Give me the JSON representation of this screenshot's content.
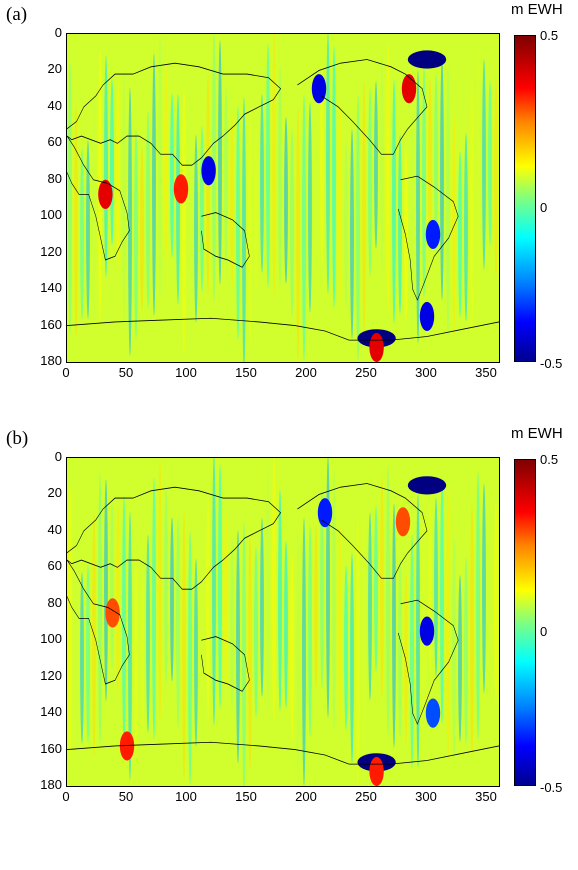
{
  "panels": [
    {
      "label": "(a)",
      "unit": "m EWH",
      "colorbar": {
        "max": "0.5",
        "mid": "0",
        "min": "-0.5"
      },
      "y_ticks": [
        "0",
        "20",
        "40",
        "60",
        "80",
        "100",
        "120",
        "140",
        "160",
        "180"
      ],
      "x_ticks": [
        "0",
        "50",
        "100",
        "150",
        "200",
        "250",
        "300",
        "350"
      ],
      "features": [
        {
          "type": "anomaly",
          "x": 300,
          "y": 14,
          "value": -0.5
        },
        {
          "type": "anomaly",
          "x": 258,
          "y": 167,
          "value": -0.5
        },
        {
          "type": "anomaly",
          "x": 258,
          "y": 172,
          "value": 0.4
        },
        {
          "type": "anomaly",
          "x": 285,
          "y": 30,
          "value": 0.4
        },
        {
          "type": "anomaly",
          "x": 210,
          "y": 30,
          "value": -0.4
        },
        {
          "type": "anomaly",
          "x": 118,
          "y": 75,
          "value": -0.4
        },
        {
          "type": "anomaly",
          "x": 95,
          "y": 85,
          "value": 0.35
        },
        {
          "type": "anomaly",
          "x": 32,
          "y": 88,
          "value": 0.4
        },
        {
          "type": "anomaly",
          "x": 305,
          "y": 110,
          "value": -0.35
        },
        {
          "type": "anomaly",
          "x": 300,
          "y": 155,
          "value": -0.4
        }
      ]
    },
    {
      "label": "(b)",
      "unit": "m EWH",
      "colorbar": {
        "max": "0.5",
        "mid": "0",
        "min": "-0.5"
      },
      "y_ticks": [
        "0",
        "20",
        "40",
        "60",
        "80",
        "100",
        "120",
        "140",
        "160",
        "180"
      ],
      "x_ticks": [
        "0",
        "50",
        "100",
        "150",
        "200",
        "250",
        "300",
        "350"
      ],
      "features": [
        {
          "type": "anomaly",
          "x": 300,
          "y": 15,
          "value": -0.5
        },
        {
          "type": "anomaly",
          "x": 258,
          "y": 167,
          "value": -0.5
        },
        {
          "type": "anomaly",
          "x": 258,
          "y": 172,
          "value": 0.35
        },
        {
          "type": "anomaly",
          "x": 215,
          "y": 30,
          "value": -0.35
        },
        {
          "type": "anomaly",
          "x": 280,
          "y": 35,
          "value": 0.3
        },
        {
          "type": "anomaly",
          "x": 300,
          "y": 95,
          "value": -0.4
        },
        {
          "type": "anomaly",
          "x": 50,
          "y": 158,
          "value": 0.35
        },
        {
          "type": "anomaly",
          "x": 305,
          "y": 140,
          "value": -0.3
        },
        {
          "type": "anomaly",
          "x": 38,
          "y": 85,
          "value": 0.3
        }
      ]
    }
  ],
  "axes": {
    "x_range": [
      0,
      360
    ],
    "y_range": [
      0,
      180
    ],
    "y_reversed": true
  },
  "colors": {
    "max": "#800000",
    "zero": "#7fff80",
    "min": "#00008f",
    "coast": "#000000"
  }
}
